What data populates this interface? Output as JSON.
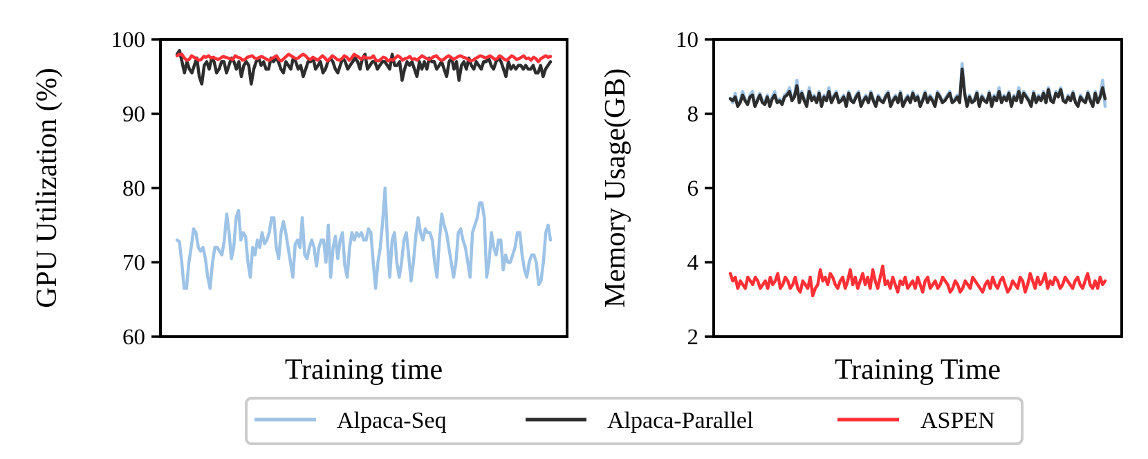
{
  "chart_data": [
    {
      "type": "line",
      "title": "",
      "xlabel": "Training time",
      "ylabel": "GPU Utilization (%)",
      "ylim": [
        60,
        100
      ],
      "yticks": [
        "60",
        "70",
        "80",
        "90",
        "100"
      ],
      "xticks": [],
      "series": [
        {
          "name": "Alpaca-Seq",
          "color": "#9dc3e6",
          "values": [
            73,
            72.8,
            70,
            66.5,
            66.5,
            70,
            72,
            74.5,
            74,
            72,
            71.5,
            72,
            70.5,
            68,
            66.5,
            70,
            72,
            72,
            71.5,
            71,
            73,
            76.5,
            74,
            70.5,
            72,
            76,
            77,
            73,
            74,
            73.5,
            70,
            68,
            72,
            71,
            73,
            72,
            74,
            72.5,
            73,
            74,
            76,
            76,
            72,
            70.5,
            74,
            75.5,
            74,
            72,
            70,
            68,
            72.5,
            73,
            72,
            76,
            71,
            70.5,
            72,
            73,
            72,
            69.5,
            72,
            73,
            73,
            70,
            75,
            68,
            72,
            73.5,
            70.5,
            73,
            74,
            69.5,
            68,
            72,
            74,
            73,
            74,
            73.5,
            74,
            73,
            73,
            74.5,
            74,
            70,
            66.5,
            70,
            72,
            75.5,
            80,
            73,
            68,
            73,
            74,
            70,
            68,
            70,
            73,
            74,
            71,
            67.5,
            70,
            73.5,
            76,
            74,
            73,
            74.5,
            74,
            74,
            73,
            70,
            68,
            73,
            76.5,
            75,
            74,
            72,
            70,
            68,
            70,
            74,
            74.5,
            73,
            72,
            70,
            68,
            74,
            75,
            76,
            78,
            78,
            76,
            68,
            70,
            74,
            72,
            71,
            73,
            73,
            69,
            71,
            70,
            70,
            71,
            72,
            74,
            74,
            71,
            69,
            68,
            70,
            71,
            71,
            70,
            67,
            67.5,
            70,
            74,
            75,
            73
          ]
        },
        {
          "name": "Alpaca-Parallel",
          "color": "#2d2d2d",
          "values": [
            98,
            98.5,
            97,
            95.5,
            97,
            96,
            95.5,
            96.5,
            97.5,
            95,
            94,
            96.5,
            97,
            96,
            97.5,
            97,
            95.5,
            96,
            97,
            97,
            95.5,
            96.5,
            97.5,
            97,
            96,
            97,
            95,
            96.5,
            97,
            96.5,
            94,
            96,
            97,
            97.5,
            96.5,
            97,
            96,
            96,
            97.5,
            97,
            97.5,
            97,
            96,
            95.5,
            97,
            96.5,
            96,
            97.5,
            97,
            96,
            96.5,
            95,
            96,
            97,
            97,
            97.5,
            96,
            96.5,
            97,
            95.5,
            96,
            97,
            97.5,
            97,
            96,
            95.5,
            96.5,
            97.5,
            97,
            96,
            96.5,
            97,
            97.5,
            97,
            96,
            97.5,
            98,
            96,
            96.5,
            97,
            97,
            96,
            96.5,
            97,
            97,
            96.5,
            96,
            98,
            96.5,
            96.5,
            97,
            94.5,
            96,
            97,
            96.5,
            97,
            96,
            95,
            97,
            96,
            97,
            96,
            97.5,
            97,
            97,
            96,
            96.5,
            97,
            96,
            95,
            97,
            97.5,
            96,
            97,
            94.5,
            96.5,
            97,
            96,
            97.5,
            96.5,
            96,
            97,
            96.5,
            96,
            97,
            97,
            97.5,
            96.5,
            96,
            97,
            97.5,
            97,
            96,
            95,
            97,
            96,
            96.5,
            96,
            96.5,
            96.5,
            96,
            96.5,
            96,
            96,
            96.5,
            95.5,
            95.5,
            96.5,
            95,
            96,
            96.5,
            97
          ]
        },
        {
          "name": "ASPEN",
          "color": "#ff3036",
          "values": [
            97.8,
            98,
            98,
            97.5,
            97.2,
            97.3,
            97.8,
            97.6,
            97.4,
            97.2,
            97.3,
            97.7,
            97.6,
            97.8,
            97.5,
            97.6,
            97.4,
            97.3,
            97.5,
            97.7,
            97.6,
            97.5,
            97.4,
            97.3,
            97.8,
            97.6,
            97.5,
            97.2,
            97.3,
            97.6,
            97.7,
            97.8,
            97.5,
            97.4,
            97.6,
            97.7,
            97.5,
            97.3,
            97.2,
            97.4,
            97.6,
            97.8,
            97.3,
            97.1,
            97.4,
            97.7,
            98,
            97.8,
            97.6,
            97.4,
            97.5,
            97.8,
            98,
            97.8,
            97.4,
            97.3,
            97.6,
            97.4,
            97.2,
            97.5,
            97.8,
            97.5,
            97.1,
            97.4,
            97.8,
            97.6,
            97.3,
            97.2,
            97.4,
            97.8,
            97.6,
            97.2,
            97.5,
            98,
            97.8,
            97.6,
            97.3,
            97.7,
            97.5,
            97.5,
            97.5,
            97.8,
            97.2,
            97.1,
            97.3,
            97.6,
            97.5,
            97.1,
            97.3,
            97.2,
            97.5,
            97.8,
            97.6,
            97.2,
            97.4,
            97.5,
            97.7,
            97.3,
            97.4,
            97.2,
            97.5,
            97.8,
            97.6,
            97.4,
            97.3,
            97.5,
            97.7,
            97.8,
            97.4,
            97.2,
            97.3,
            97.6,
            97.8,
            97.6,
            97.3,
            97.5,
            97.7,
            97.8,
            97.6,
            97.5,
            97.3,
            97.1,
            97.2,
            97.4,
            97.6,
            97.8,
            97.7,
            97.5,
            97.6,
            97.8,
            97.6,
            97.3,
            97.4,
            97.8,
            97.6,
            97.3,
            97.2,
            97.5,
            97.8,
            97.6,
            97.3,
            97.4,
            97.6,
            97.8,
            97.4,
            97.5,
            97.2,
            97.6,
            97.4,
            97,
            97.4,
            97.6,
            97.8,
            97.6,
            97.7
          ]
        }
      ]
    },
    {
      "type": "line",
      "title": "",
      "xlabel": "Training Time",
      "ylabel": "Memory Usage(GB)",
      "ylim": [
        2,
        10
      ],
      "yticks": [
        "2",
        "4",
        "6",
        "8",
        "10"
      ],
      "xticks": [],
      "series": [
        {
          "name": "Alpaca-Seq",
          "color": "#9dc3e6",
          "values": [
            8.42,
            8.3,
            8.55,
            8.2,
            8.35,
            8.6,
            8.4,
            8.25,
            8.5,
            8.6,
            8.2,
            8.4,
            8.55,
            8.35,
            8.3,
            8.5,
            8.2,
            8.45,
            8.6,
            8.3,
            8.4,
            8.25,
            8.5,
            8.55,
            8.7,
            8.4,
            8.5,
            8.9,
            8.3,
            8.6,
            8.4,
            8.2,
            8.7,
            8.4,
            8.5,
            8.3,
            8.6,
            8.2,
            8.5,
            8.4,
            8.7,
            8.3,
            8.5,
            8.6,
            8.3,
            8.4,
            8.5,
            8.2,
            8.6,
            8.4,
            8.3,
            8.5,
            8.6,
            8.2,
            8.4,
            8.5,
            8.3,
            8.6,
            8.4,
            8.2,
            8.5,
            8.4,
            8.3,
            8.5,
            8.6,
            8.2,
            8.4,
            8.5,
            8.3,
            8.6,
            8.2,
            8.4,
            8.5,
            8.3,
            8.6,
            8.4,
            8.5,
            8.2,
            8.4,
            8.6,
            8.3,
            8.5,
            8.4,
            8.2,
            8.6,
            8.5,
            8.3,
            8.4,
            8.5,
            8.6,
            8.3,
            8.4,
            8.5,
            8.3,
            9.35,
            8.6,
            8.2,
            8.5,
            8.3,
            8.4,
            8.6,
            8.2,
            8.5,
            8.4,
            8.3,
            8.6,
            8.2,
            8.5,
            8.4,
            8.7,
            8.3,
            8.5,
            8.4,
            8.6,
            8.2,
            8.5,
            8.4,
            8.7,
            8.3,
            8.6,
            8.5,
            8.4,
            8.2,
            8.6,
            8.3,
            8.5,
            8.4,
            8.6,
            8.3,
            8.7,
            8.4,
            8.3,
            8.6,
            8.5,
            8.7,
            8.4,
            8.3,
            8.5,
            8.4,
            8.6,
            8.3,
            8.2,
            8.5,
            8.4,
            8.3,
            8.6,
            8.4,
            8.2,
            8.6,
            8.3,
            8.5,
            8.9,
            8.2
          ]
        },
        {
          "name": "Alpaca-Parallel",
          "color": "#2d2d2d",
          "values": [
            8.4,
            8.35,
            8.45,
            8.2,
            8.3,
            8.5,
            8.35,
            8.25,
            8.45,
            8.5,
            8.2,
            8.35,
            8.5,
            8.3,
            8.25,
            8.45,
            8.2,
            8.4,
            8.5,
            8.3,
            8.35,
            8.25,
            8.45,
            8.5,
            8.6,
            8.35,
            8.45,
            8.75,
            8.3,
            8.55,
            8.35,
            8.2,
            8.6,
            8.35,
            8.45,
            8.3,
            8.55,
            8.2,
            8.45,
            8.35,
            8.6,
            8.3,
            8.45,
            8.55,
            8.3,
            8.35,
            8.45,
            8.2,
            8.55,
            8.35,
            8.3,
            8.45,
            8.55,
            8.2,
            8.35,
            8.45,
            8.3,
            8.55,
            8.35,
            8.2,
            8.45,
            8.35,
            8.3,
            8.45,
            8.55,
            8.2,
            8.35,
            8.45,
            8.3,
            8.55,
            8.2,
            8.35,
            8.45,
            8.3,
            8.55,
            8.35,
            8.45,
            8.2,
            8.35,
            8.55,
            8.3,
            8.45,
            8.35,
            8.2,
            8.55,
            8.45,
            8.3,
            8.35,
            8.45,
            8.55,
            8.3,
            8.35,
            8.45,
            8.3,
            9.2,
            8.55,
            8.2,
            8.45,
            8.3,
            8.35,
            8.55,
            8.2,
            8.45,
            8.35,
            8.3,
            8.55,
            8.2,
            8.45,
            8.35,
            8.6,
            8.3,
            8.45,
            8.35,
            8.55,
            8.2,
            8.45,
            8.35,
            8.6,
            8.3,
            8.55,
            8.45,
            8.35,
            8.2,
            8.55,
            8.3,
            8.45,
            8.35,
            8.55,
            8.3,
            8.65,
            8.35,
            8.3,
            8.55,
            8.45,
            8.65,
            8.35,
            8.3,
            8.45,
            8.35,
            8.55,
            8.3,
            8.2,
            8.45,
            8.35,
            8.3,
            8.55,
            8.35,
            8.2,
            8.55,
            8.3,
            8.45,
            8.7,
            8.4
          ]
        },
        {
          "name": "ASPEN",
          "color": "#ff3036",
          "values": [
            3.7,
            3.5,
            3.6,
            3.3,
            3.5,
            3.4,
            3.3,
            3.6,
            3.5,
            3.4,
            3.6,
            3.5,
            3.3,
            3.4,
            3.5,
            3.3,
            3.6,
            3.4,
            3.5,
            3.7,
            3.3,
            3.4,
            3.6,
            3.5,
            3.3,
            3.4,
            3.6,
            3.3,
            3.2,
            3.5,
            3.4,
            3.3,
            3.6,
            3.1,
            3.3,
            3.4,
            3.8,
            3.5,
            3.6,
            3.4,
            3.7,
            3.6,
            3.4,
            3.3,
            3.5,
            3.6,
            3.3,
            3.5,
            3.8,
            3.4,
            3.6,
            3.3,
            3.5,
            3.7,
            3.4,
            3.6,
            3.3,
            3.8,
            3.5,
            3.3,
            3.6,
            3.9,
            3.4,
            3.5,
            3.3,
            3.6,
            3.4,
            3.2,
            3.5,
            3.4,
            3.6,
            3.3,
            3.4,
            3.5,
            3.3,
            3.6,
            3.4,
            3.2,
            3.5,
            3.6,
            3.3,
            3.4,
            3.5,
            3.3,
            3.4,
            3.6,
            3.5,
            3.4,
            3.2,
            3.3,
            3.5,
            3.4,
            3.2,
            3.3,
            3.5,
            3.4,
            3.3,
            3.6,
            3.5,
            3.4,
            3.3,
            3.2,
            3.4,
            3.5,
            3.3,
            3.6,
            3.4,
            3.3,
            3.5,
            3.6,
            3.4,
            3.2,
            3.3,
            3.5,
            3.4,
            3.3,
            3.6,
            3.5,
            3.2,
            3.4,
            3.7,
            3.5,
            3.3,
            3.6,
            3.4,
            3.5,
            3.7,
            3.3,
            3.5,
            3.4,
            3.6,
            3.5,
            3.3,
            3.4,
            3.6,
            3.5,
            3.4,
            3.3,
            3.5,
            3.6,
            3.4,
            3.3,
            3.5,
            3.7,
            3.4,
            3.3,
            3.5,
            3.3,
            3.6,
            3.4,
            3.5
          ]
        }
      ]
    }
  ],
  "legend": {
    "items": [
      {
        "label": "Alpaca-Seq",
        "color": "#9dc3e6"
      },
      {
        "label": "Alpaca-Parallel",
        "color": "#2d2d2d"
      },
      {
        "label": "ASPEN",
        "color": "#ff3036"
      }
    ]
  }
}
